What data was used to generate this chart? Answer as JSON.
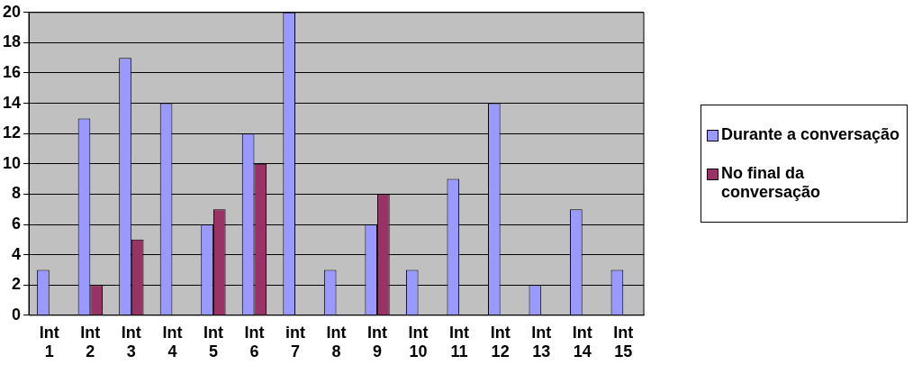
{
  "chart_data": {
    "type": "bar",
    "categories": [
      "Int 1",
      "Int 2",
      "Int 3",
      "Int 4",
      "Int 5",
      "Int 6",
      "int 7",
      "Int 8",
      "Int 9",
      "Int 10",
      "Int 11",
      "Int 12",
      "Int 13",
      "Int 14",
      "Int 15"
    ],
    "series": [
      {
        "name": "Durante a conversação",
        "color": "#9999ff",
        "values": [
          3,
          13,
          17,
          14,
          6,
          12,
          20,
          3,
          6,
          3,
          9,
          14,
          2,
          7,
          3
        ]
      },
      {
        "name": "No final da conversação",
        "color": "#993366",
        "values": [
          0,
          2,
          5,
          0,
          7,
          10,
          0,
          0,
          8,
          0,
          0,
          0,
          0,
          0,
          0
        ]
      }
    ],
    "ylim": [
      0,
      20
    ],
    "yticks": [
      0,
      2,
      4,
      6,
      8,
      10,
      12,
      14,
      16,
      18,
      20
    ],
    "grid": "y",
    "legend": "right"
  }
}
